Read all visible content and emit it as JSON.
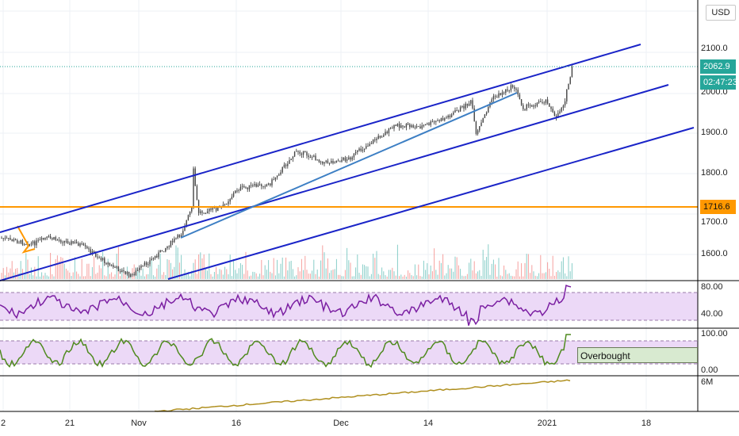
{
  "currency": "USD",
  "price_axis": {
    "labels": [
      "2100.0",
      "2000.0",
      "1900.0",
      "1800.0",
      "1700.0",
      "1600.0"
    ],
    "current_price": "2062.9",
    "countdown": "02:47:23",
    "level_price": "1716.6"
  },
  "rsi_axis": {
    "labels": [
      "80.00",
      "40.00"
    ]
  },
  "stoch_axis": {
    "labels": [
      "100.00",
      "0.00"
    ]
  },
  "bottom_pane_label": "6M",
  "time_axis": {
    "labels": [
      "2",
      "21",
      "Nov",
      "16",
      "Dec",
      "14",
      "2021",
      "18"
    ]
  },
  "annotation": {
    "overbought": "Overbought"
  },
  "colors": {
    "up": "#26a69a",
    "down": "#ef5350",
    "channel": "#1a24c8",
    "trendline": "#3d7fc4",
    "level": "#ff9800",
    "rsi": "#7b1fa2",
    "stoch": "#4f8a1e",
    "bottom_line": "#b09020",
    "band": "#ecd9f7"
  }
}
